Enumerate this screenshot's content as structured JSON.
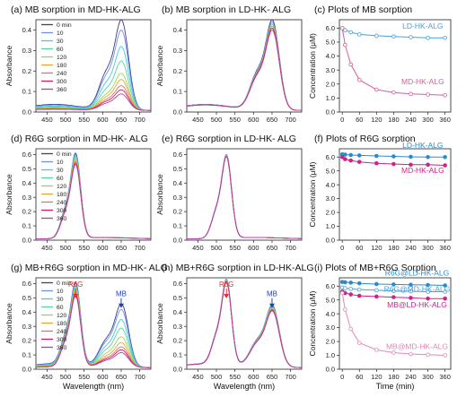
{
  "figure": {
    "xlabel": "Wavelength (nm)",
    "time_xlabel": "Time (min)",
    "spectra_ylabel": "Absorbance",
    "conc_ylabel": "Concentration (μM)",
    "legend_labels": [
      "0 min",
      "10",
      "30",
      "60",
      "120",
      "180",
      "240",
      "300",
      "360"
    ],
    "legend_colors": [
      "#3a3a8c",
      "#6f8fe8",
      "#46c8e0",
      "#58d4a0",
      "#9cd45a",
      "#e0a838",
      "#e07070",
      "#d02060",
      "#b040b0"
    ],
    "marker_labels": {
      "r6g": "R6G",
      "mb": "MB"
    }
  },
  "chart_data": [
    {
      "id": "a",
      "type": "line",
      "title": "(a) MB sorption in MD-HK-ALG",
      "xlabel": "",
      "ylabel": "Absorbance",
      "xlim": [
        420,
        730
      ],
      "ylim": [
        0,
        0.45
      ],
      "xticks": [
        450,
        500,
        550,
        600,
        650,
        700
      ],
      "yticks": [
        0.0,
        0.1,
        0.2,
        0.3,
        0.4
      ],
      "ytick_labels": [
        "0.0",
        "0.1",
        "0.2",
        "0.3",
        "0.4"
      ],
      "legend": "top-left",
      "profile": "mb",
      "series": [
        {
          "name": "0 min",
          "peak": 0.44
        },
        {
          "name": "10",
          "peak": 0.39
        },
        {
          "name": "30",
          "peak": 0.31
        },
        {
          "name": "60",
          "peak": 0.24
        },
        {
          "name": "120",
          "peak": 0.18
        },
        {
          "name": "180",
          "peak": 0.15
        },
        {
          "name": "240",
          "peak": 0.12
        },
        {
          "name": "300",
          "peak": 0.1
        },
        {
          "name": "360",
          "peak": 0.08
        }
      ]
    },
    {
      "id": "b",
      "type": "line",
      "title": "(b) MB sorption in LD-HK- ALG",
      "xlabel": "",
      "ylabel": "Absorbance",
      "xlim": [
        420,
        730
      ],
      "ylim": [
        0,
        0.45
      ],
      "xticks": [
        450,
        500,
        550,
        600,
        650,
        700
      ],
      "yticks": [
        0.0,
        0.1,
        0.2,
        0.3,
        0.4
      ],
      "ytick_labels": [
        "0.0",
        "0.1",
        "0.2",
        "0.3",
        "0.4"
      ],
      "profile": "mb",
      "series": [
        {
          "name": "0 min",
          "peak": 0.44
        },
        {
          "name": "10",
          "peak": 0.43
        },
        {
          "name": "30",
          "peak": 0.42
        },
        {
          "name": "60",
          "peak": 0.42
        },
        {
          "name": "120",
          "peak": 0.41
        },
        {
          "name": "180",
          "peak": 0.41
        },
        {
          "name": "240",
          "peak": 0.4
        },
        {
          "name": "300",
          "peak": 0.4
        },
        {
          "name": "360",
          "peak": 0.39
        }
      ]
    },
    {
      "id": "c",
      "type": "line",
      "title": "(c) Plots of MB sorption",
      "xlabel": "",
      "ylabel": "Concentration (μM)",
      "xlim": [
        -10,
        380
      ],
      "ylim": [
        0,
        6.6
      ],
      "xticks": [
        0,
        60,
        120,
        180,
        240,
        300,
        360
      ],
      "yticks": [
        0,
        1,
        2,
        3,
        4,
        5,
        6
      ],
      "ytick_labels": [
        "0.0",
        "1.0",
        "2.0",
        "3.0",
        "4.0",
        "5.0",
        "6.0"
      ],
      "x": [
        0,
        10,
        30,
        60,
        120,
        180,
        240,
        300,
        360
      ],
      "series": [
        {
          "name": "LD-HK-ALG",
          "color": "#4aa0d8",
          "marker": "open",
          "values": [
            6.0,
            5.85,
            5.7,
            5.55,
            5.45,
            5.4,
            5.35,
            5.3,
            5.3
          ],
          "label_at": [
            282,
            5.95
          ]
        },
        {
          "name": "MD-HK-ALG",
          "color": "#d060a0",
          "marker": "open",
          "values": [
            6.0,
            4.8,
            3.4,
            2.3,
            1.6,
            1.4,
            1.3,
            1.25,
            1.2
          ],
          "label_at": [
            282,
            2.0
          ]
        }
      ]
    },
    {
      "id": "d",
      "type": "line",
      "title": "(d) R6G sorption in MD-HK- ALG",
      "xlabel": "",
      "ylabel": "Absorbance",
      "xlim": [
        420,
        730
      ],
      "ylim": [
        0,
        0.64
      ],
      "xticks": [
        450,
        500,
        550,
        600,
        650,
        700
      ],
      "yticks": [
        0.0,
        0.1,
        0.2,
        0.3,
        0.4,
        0.5,
        0.6
      ],
      "ytick_labels": [
        "0.0",
        "0.1",
        "0.2",
        "0.3",
        "0.4",
        "0.5",
        "0.6"
      ],
      "legend": "top-left",
      "profile": "r6g",
      "series": [
        {
          "name": "0 min",
          "peak": 0.6
        },
        {
          "name": "10",
          "peak": 0.59
        },
        {
          "name": "30",
          "peak": 0.58
        },
        {
          "name": "60",
          "peak": 0.57
        },
        {
          "name": "120",
          "peak": 0.56
        },
        {
          "name": "180",
          "peak": 0.55
        },
        {
          "name": "240",
          "peak": 0.54
        },
        {
          "name": "300",
          "peak": 0.53
        },
        {
          "name": "360",
          "peak": 0.52
        }
      ]
    },
    {
      "id": "e",
      "type": "line",
      "title": "(e) R6G sorption in LD-HK- ALG",
      "xlabel": "",
      "ylabel": "Absorbance",
      "xlim": [
        420,
        730
      ],
      "ylim": [
        0,
        0.64
      ],
      "xticks": [
        450,
        500,
        550,
        600,
        650,
        700
      ],
      "yticks": [
        0.0,
        0.1,
        0.2,
        0.3,
        0.4,
        0.5,
        0.6
      ],
      "ytick_labels": [
        "0.0",
        "0.1",
        "0.2",
        "0.3",
        "0.4",
        "0.5",
        "0.6"
      ],
      "profile": "r6g",
      "series": [
        {
          "name": "0 min",
          "peak": 0.59
        },
        {
          "name": "10",
          "peak": 0.59
        },
        {
          "name": "30",
          "peak": 0.585
        },
        {
          "name": "60",
          "peak": 0.585
        },
        {
          "name": "120",
          "peak": 0.58
        },
        {
          "name": "180",
          "peak": 0.58
        },
        {
          "name": "240",
          "peak": 0.58
        },
        {
          "name": "300",
          "peak": 0.575
        },
        {
          "name": "360",
          "peak": 0.575
        }
      ]
    },
    {
      "id": "f",
      "type": "line",
      "title": "(f) Plots of R6G sorption",
      "xlabel": "",
      "ylabel": "Concentration (μM)",
      "xlim": [
        -10,
        380
      ],
      "ylim": [
        0,
        6.6
      ],
      "xticks": [
        0,
        60,
        120,
        180,
        240,
        300,
        360
      ],
      "yticks": [
        0,
        1,
        2,
        3,
        4,
        5,
        6
      ],
      "ytick_labels": [
        "0.0",
        "1.0",
        "2.0",
        "3.0",
        "4.0",
        "5.0",
        "6.0"
      ],
      "x": [
        0,
        10,
        30,
        60,
        120,
        180,
        240,
        300,
        360
      ],
      "series": [
        {
          "name": "LD-HK-ALG",
          "color": "#2a8ad0",
          "marker": "filled",
          "values": [
            6.2,
            6.18,
            6.15,
            6.12,
            6.08,
            6.05,
            6.02,
            6.0,
            6.0
          ],
          "label_at": [
            282,
            6.65
          ]
        },
        {
          "name": "MD-HK-ALG",
          "color": "#d0208a",
          "marker": "filled",
          "values": [
            6.0,
            5.85,
            5.75,
            5.65,
            5.55,
            5.5,
            5.45,
            5.45,
            5.4
          ],
          "label_at": [
            282,
            4.85
          ]
        }
      ]
    },
    {
      "id": "g",
      "type": "line",
      "title": "(g) MB+R6G sorption in MD-HK- ALG",
      "xlabel": "Wavelength (nm)",
      "ylabel": "Absorbance",
      "xlim": [
        420,
        730
      ],
      "ylim": [
        0,
        0.64
      ],
      "xticks": [
        450,
        500,
        550,
        600,
        650,
        700
      ],
      "yticks": [
        0.0,
        0.1,
        0.2,
        0.3,
        0.4,
        0.5,
        0.6
      ],
      "ytick_labels": [
        "0.0",
        "0.1",
        "0.2",
        "0.3",
        "0.4",
        "0.5",
        "0.6"
      ],
      "legend": "top-left",
      "profile": "mix",
      "markers": [
        {
          "label": "R6G",
          "x": 527,
          "color": "#e03030"
        },
        {
          "label": "MB",
          "x": 650,
          "color": "#2040c0"
        }
      ],
      "series": [
        {
          "name": "0 min",
          "peak": 0.58,
          "mb_peak": 0.44
        },
        {
          "name": "10",
          "peak": 0.57,
          "mb_peak": 0.4
        },
        {
          "name": "30",
          "peak": 0.56,
          "mb_peak": 0.33
        },
        {
          "name": "60",
          "peak": 0.55,
          "mb_peak": 0.27
        },
        {
          "name": "120",
          "peak": 0.54,
          "mb_peak": 0.21
        },
        {
          "name": "180",
          "peak": 0.53,
          "mb_peak": 0.17
        },
        {
          "name": "240",
          "peak": 0.52,
          "mb_peak": 0.14
        },
        {
          "name": "300",
          "peak": 0.51,
          "mb_peak": 0.12
        },
        {
          "name": "360",
          "peak": 0.5,
          "mb_peak": 0.1
        }
      ]
    },
    {
      "id": "h",
      "type": "line",
      "title": "(h) MB+R6G sorption in LD-HK-ALG",
      "xlabel": "Wavelength (nm)",
      "ylabel": "Absorbance",
      "xlim": [
        420,
        730
      ],
      "ylim": [
        0,
        0.64
      ],
      "xticks": [
        450,
        500,
        550,
        600,
        650,
        700
      ],
      "yticks": [
        0.0,
        0.1,
        0.2,
        0.3,
        0.4,
        0.5,
        0.6
      ],
      "ytick_labels": [
        "0.0",
        "0.1",
        "0.2",
        "0.3",
        "0.4",
        "0.5",
        "0.6"
      ],
      "profile": "mix",
      "markers": [
        {
          "label": "R6G",
          "x": 527,
          "color": "#e03030"
        },
        {
          "label": "MB",
          "x": 650,
          "color": "#2040c0"
        }
      ],
      "series": [
        {
          "name": "0 min",
          "peak": 0.6,
          "mb_peak": 0.43
        },
        {
          "name": "10",
          "peak": 0.6,
          "mb_peak": 0.425
        },
        {
          "name": "30",
          "peak": 0.595,
          "mb_peak": 0.42
        },
        {
          "name": "60",
          "peak": 0.595,
          "mb_peak": 0.415
        },
        {
          "name": "120",
          "peak": 0.59,
          "mb_peak": 0.41
        },
        {
          "name": "180",
          "peak": 0.59,
          "mb_peak": 0.405
        },
        {
          "name": "240",
          "peak": 0.585,
          "mb_peak": 0.4
        },
        {
          "name": "300",
          "peak": 0.585,
          "mb_peak": 0.395
        },
        {
          "name": "360",
          "peak": 0.58,
          "mb_peak": 0.39
        }
      ]
    },
    {
      "id": "i",
      "type": "line",
      "title": "(i) Plots of MB+R6G Sorption",
      "xlabel": "Time (min)",
      "ylabel": "Concentration (μM)",
      "xlim": [
        -10,
        380
      ],
      "ylim": [
        0,
        6.6
      ],
      "xticks": [
        0,
        60,
        120,
        180,
        240,
        300,
        360
      ],
      "yticks": [
        0,
        1,
        2,
        3,
        4,
        5,
        6
      ],
      "ytick_labels": [
        "0.0",
        "1.0",
        "2.0",
        "3.0",
        "4.0",
        "5.0",
        "6.0"
      ],
      "x": [
        0,
        10,
        30,
        60,
        120,
        180,
        240,
        300,
        360
      ],
      "series": [
        {
          "name": "R6G@LD-HK-ALG",
          "color": "#2a8ad0",
          "marker": "filled",
          "values": [
            6.3,
            6.28,
            6.25,
            6.2,
            6.15,
            6.12,
            6.1,
            6.08,
            6.05
          ],
          "label_at": [
            262,
            6.75
          ]
        },
        {
          "name": "R6G@MD-HK-ALG",
          "color": "#4aa0d8",
          "marker": "open",
          "values": [
            5.9,
            5.85,
            5.8,
            5.75,
            5.7,
            5.65,
            5.62,
            5.6,
            5.6
          ],
          "label_at": [
            262,
            5.6
          ]
        },
        {
          "name": "MB@LD-HK-ALG",
          "color": "#d0208a",
          "marker": "filled",
          "values": [
            5.6,
            5.5,
            5.4,
            5.3,
            5.25,
            5.2,
            5.15,
            5.1,
            5.1
          ],
          "label_at": [
            262,
            4.45
          ]
        },
        {
          "name": "MB@MD-HK-ALG",
          "color": "#e08ab8",
          "marker": "open",
          "values": [
            5.5,
            4.3,
            2.9,
            1.9,
            1.4,
            1.2,
            1.1,
            1.05,
            1.0
          ],
          "label_at": [
            262,
            1.45
          ]
        }
      ]
    }
  ]
}
